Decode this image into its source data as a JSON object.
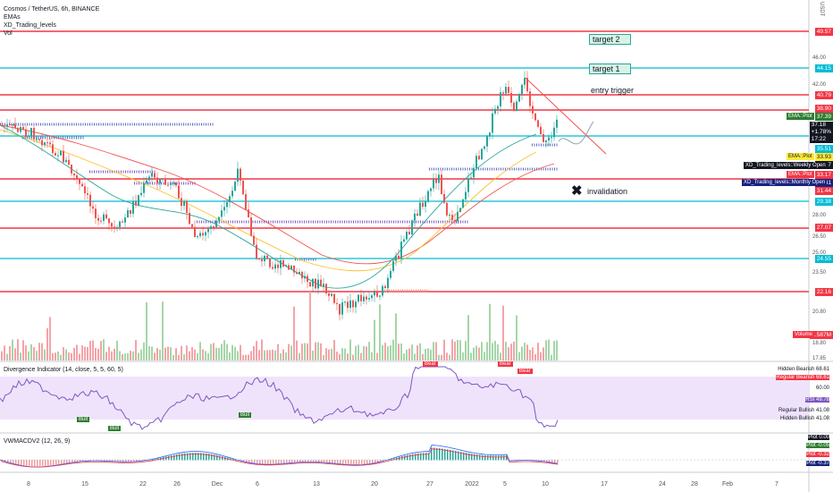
{
  "chart": {
    "title": "Cosmos / TetherUS, 6h, BINANCE",
    "indicators": [
      "EMAs",
      "XD_Trading_levels",
      "Vol"
    ],
    "currency": "USDT"
  },
  "annotations": {
    "target2": "target 2",
    "target1": "target 1",
    "entry": "entry trigger",
    "invalidation": "invalidation"
  },
  "price_axis": [
    "46.00",
    "42.00",
    "37.18",
    "35.03",
    "28.00",
    "26.50",
    "25.00",
    "23.50",
    "20.80",
    "18.80",
    "17.85"
  ],
  "price_tags": [
    {
      "label": "49.57",
      "color": "#f23645"
    },
    {
      "label": "44.15",
      "color": "#00bcd4"
    },
    {
      "label": "40.79",
      "color": "#f23645"
    },
    {
      "label": "38.90",
      "color": "#f23645"
    },
    {
      "label": "37.39",
      "color": "#2e7d32"
    },
    {
      "label": "37.18\n+1.78%\n17:22",
      "color": "#131722"
    },
    {
      "label": "35.51",
      "color": "#00bcd4"
    },
    {
      "label": "33.93",
      "color": "#ffeb3b"
    },
    {
      "label": "34.97",
      "color": "#131722"
    },
    {
      "label": "33.17",
      "color": "#f23645"
    },
    {
      "label": "32.41",
      "color": "#1a237e"
    },
    {
      "label": "31.44",
      "color": "#f23645"
    },
    {
      "label": "29.38",
      "color": "#00bcd4"
    },
    {
      "label": "27.07",
      "color": "#f23645"
    },
    {
      "label": "24.55",
      "color": "#00bcd4"
    },
    {
      "label": "22.16",
      "color": "#f23645"
    },
    {
      "label": "1.587M",
      "color": "#f23645"
    }
  ],
  "line_labels": {
    "ema_top": "EMA::Plot",
    "ema_mid": "EMA::Plot",
    "weekly": "XD_Trading_levels::Weekly Open",
    "ema_low": "EMA::Plot",
    "monthly": "XD_Trading_levels::Monthly Open",
    "volume": "Volume"
  },
  "rsi": {
    "legend": "Divergence Indicator (14, close, 5, 5, 60, 5)",
    "bear": "Bear",
    "bull": "Bull",
    "values": [
      {
        "name": "Hidden Bearish",
        "value": "68.61"
      },
      {
        "name": "Regular Bearish",
        "value": "68.61"
      },
      {
        "name": "60.00",
        "value": ""
      },
      {
        "name": "RSI",
        "value": "49.78"
      },
      {
        "name": "Regular Bullish",
        "value": "41.08"
      },
      {
        "name": "Hidden Bullish",
        "value": "41.08"
      }
    ]
  },
  "macd": {
    "legend": "VWMACDV2 (12, 26, 9)",
    "values": [
      {
        "name": "Plot",
        "value": "0.00"
      },
      {
        "name": "Plot",
        "value": "-0.05"
      },
      {
        "name": "Plot",
        "value": "-0.32"
      },
      {
        "name": "Plot",
        "value": "-0.37"
      }
    ]
  },
  "time_axis": [
    "8",
    "15",
    "22",
    "26",
    "Dec",
    "6",
    "13",
    "20",
    "27",
    "2022",
    "5",
    "10",
    "17",
    "24",
    "28",
    "Feb",
    "7"
  ]
}
